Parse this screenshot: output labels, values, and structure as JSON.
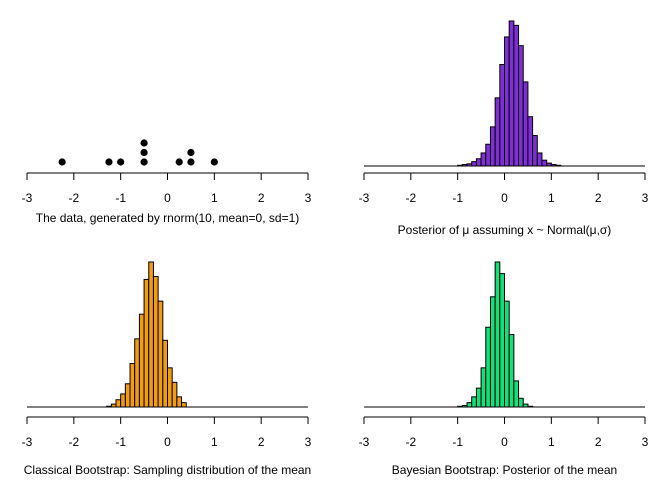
{
  "chart_data": [
    {
      "type": "scatter",
      "xlabel": "The data, generated by rnorm(10, mean=0, sd=1)",
      "xlim": [
        -3,
        3
      ],
      "xticks": [
        -3,
        -2,
        -1,
        0,
        1,
        2,
        3
      ],
      "marker_color": "#000000",
      "points": [
        {
          "x": -2.25,
          "y": 1
        },
        {
          "x": -1.25,
          "y": 1
        },
        {
          "x": -1.0,
          "y": 1
        },
        {
          "x": -0.5,
          "y": 1
        },
        {
          "x": -0.5,
          "y": 2
        },
        {
          "x": -0.5,
          "y": 3
        },
        {
          "x": 0.25,
          "y": 1
        },
        {
          "x": 0.5,
          "y": 1
        },
        {
          "x": 0.5,
          "y": 2
        },
        {
          "x": 1.0,
          "y": 1
        }
      ]
    },
    {
      "type": "bar",
      "xlabel": "Posterior of μ assuming x ~ Normal(μ,σ)",
      "xlim": [
        -3,
        3
      ],
      "xticks": [
        -3,
        -2,
        -1,
        0,
        1,
        2,
        3
      ],
      "bin_start": -1.0,
      "bin_width": 0.1,
      "tail_from": -3,
      "tail_to": 3,
      "color": "#7f2fd6",
      "counts": [
        0.005,
        0.01,
        0.015,
        0.03,
        0.05,
        0.09,
        0.15,
        0.27,
        0.47,
        0.7,
        0.89,
        1.0,
        0.97,
        0.83,
        0.58,
        0.34,
        0.21,
        0.09,
        0.04,
        0.02,
        0.01,
        0.005
      ]
    },
    {
      "type": "bar",
      "xlabel": "Classical Bootstrap: Sampling distribution of the mean",
      "xlim": [
        -3,
        3
      ],
      "xticks": [
        -3,
        -2,
        -1,
        0,
        1,
        2,
        3
      ],
      "bin_start": -1.3,
      "bin_width": 0.1,
      "tail_from": -3,
      "tail_to": 3,
      "color": "#f29c12",
      "counts": [
        0.005,
        0.02,
        0.05,
        0.09,
        0.16,
        0.3,
        0.47,
        0.64,
        0.88,
        1.0,
        0.9,
        0.73,
        0.46,
        0.27,
        0.17,
        0.07,
        0.03
      ]
    },
    {
      "type": "bar",
      "xlabel": "Bayesian Bootstrap: Posterior of the mean",
      "xlim": [
        -3,
        3
      ],
      "xticks": [
        -3,
        -2,
        -1,
        0,
        1,
        2,
        3
      ],
      "bin_start": -1.0,
      "bin_width": 0.1,
      "tail_from": -3,
      "tail_to": 3,
      "color": "#14e07a",
      "counts": [
        0.005,
        0.01,
        0.03,
        0.07,
        0.13,
        0.27,
        0.55,
        0.76,
        1.0,
        0.92,
        0.73,
        0.5,
        0.18,
        0.06,
        0.02,
        0.005
      ]
    }
  ]
}
